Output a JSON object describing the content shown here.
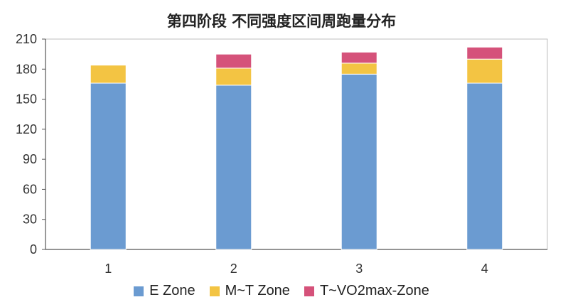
{
  "chart_data": {
    "type": "bar",
    "stacked": true,
    "title": "第四阶段 不同强度区间周跑量分布",
    "xlabel": "",
    "ylabel": "",
    "categories": [
      "1",
      "2",
      "3",
      "4"
    ],
    "ylim": [
      0,
      210
    ],
    "yticks": [
      0,
      30,
      60,
      90,
      120,
      150,
      180,
      210
    ],
    "grid": false,
    "legend_position": "bottom",
    "series": [
      {
        "name": "E Zone",
        "color": "#6b9bd1",
        "values": [
          166,
          164,
          175,
          166
        ]
      },
      {
        "name": "M~T Zone",
        "color": "#f3c443",
        "values": [
          18,
          17,
          11,
          24
        ]
      },
      {
        "name": "T~VO2max-Zone",
        "color": "#d5527a",
        "values": [
          0,
          14,
          11,
          12
        ]
      }
    ]
  }
}
